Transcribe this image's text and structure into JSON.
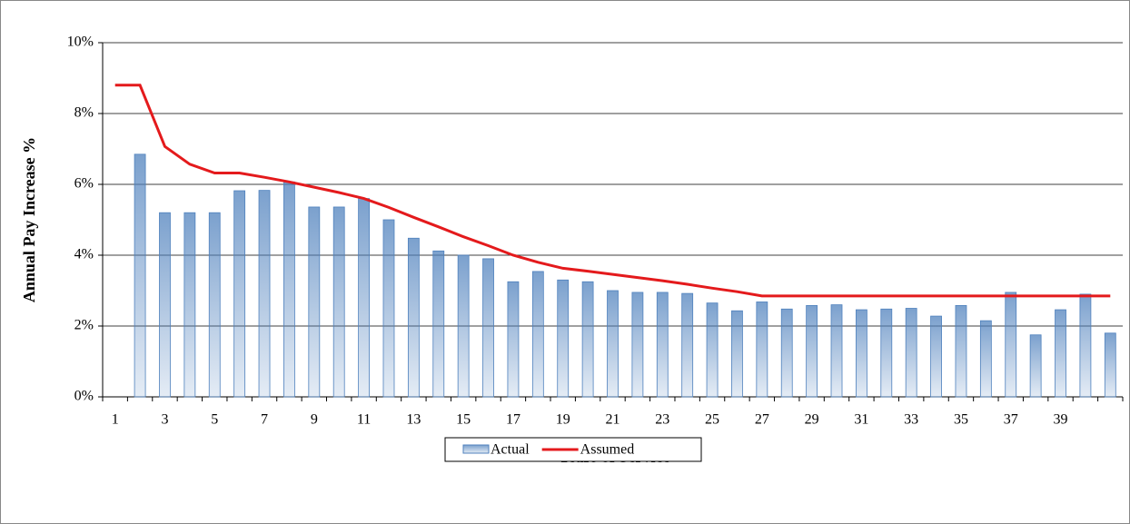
{
  "chart_data": {
    "type": "bar",
    "xlabel": "Years of Service",
    "ylabel": "Annual Pay Increase %",
    "categories": [
      "1",
      null,
      "3",
      null,
      "5",
      null,
      "7",
      null,
      "9",
      null,
      "11",
      null,
      "13",
      null,
      "15",
      null,
      "17",
      null,
      "19",
      null,
      "21",
      null,
      "23",
      null,
      "25",
      null,
      "27",
      null,
      "29",
      null,
      "31",
      null,
      "33",
      null,
      "35",
      null,
      "37",
      null,
      "39",
      null,
      null
    ],
    "series": [
      {
        "name": "Actual",
        "type": "bar",
        "color": "#4f81bd",
        "values": [
          0,
          6.85,
          5.2,
          5.2,
          5.2,
          5.82,
          5.83,
          6.07,
          5.36,
          5.36,
          5.6,
          5.0,
          4.48,
          4.12,
          4.0,
          3.9,
          3.25,
          3.54,
          3.3,
          3.25,
          3.0,
          2.95,
          2.95,
          2.92,
          2.65,
          2.43,
          2.68,
          2.48,
          2.58,
          2.6,
          2.46,
          2.48,
          2.5,
          2.28,
          2.58,
          2.15,
          2.95,
          1.75,
          2.46,
          2.9,
          1.8
        ]
      },
      {
        "name": "Assumed",
        "type": "line",
        "color": "#e41a1c",
        "values": [
          8.8,
          8.8,
          7.07,
          6.57,
          6.32,
          6.32,
          6.2,
          6.07,
          5.92,
          5.77,
          5.6,
          5.35,
          5.07,
          4.8,
          4.52,
          4.27,
          4.0,
          3.8,
          3.63,
          3.55,
          3.46,
          3.37,
          3.28,
          3.18,
          3.07,
          2.97,
          2.85,
          2.85,
          2.85,
          2.85,
          2.85,
          2.85,
          2.85,
          2.85,
          2.85,
          2.85,
          2.85,
          2.85,
          2.85,
          2.85,
          2.85
        ]
      }
    ],
    "ylim": [
      0,
      10
    ],
    "yticks": [
      {
        "value": 0,
        "label": "0%"
      },
      {
        "value": 2,
        "label": "2%"
      },
      {
        "value": 4,
        "label": "4%"
      },
      {
        "value": 6,
        "label": "6%"
      },
      {
        "value": 8,
        "label": "8%"
      },
      {
        "value": 10,
        "label": "10%"
      }
    ],
    "grid": true,
    "legend": "bottom"
  }
}
